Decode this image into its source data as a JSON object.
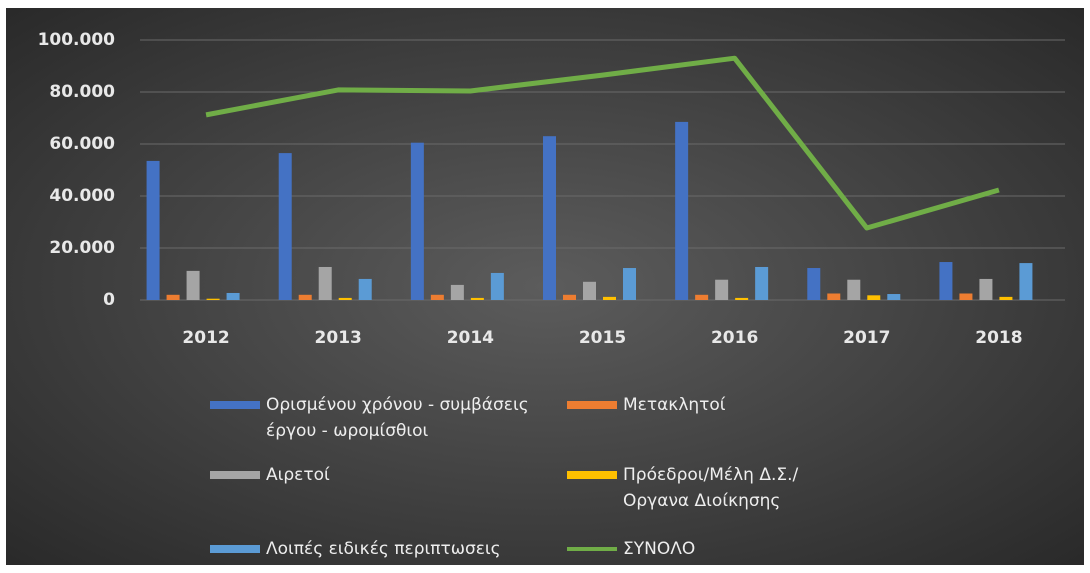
{
  "chart_data": {
    "type": "bar",
    "categories": [
      "2012",
      "2013",
      "2014",
      "2015",
      "2016",
      "2017",
      "2018"
    ],
    "series": [
      {
        "name": "Ορισμένου χρόνου - συμβάσεις έργου - ωρομίσθιοι",
        "color": "#4472c4",
        "values": [
          53500,
          56500,
          60500,
          63000,
          68500,
          12300,
          14600
        ]
      },
      {
        "name": "Μετακλητοί",
        "color": "#ed7d31",
        "values": [
          2000,
          2000,
          2000,
          2000,
          2000,
          2500,
          2500
        ]
      },
      {
        "name": "Αιρετοί",
        "color": "#a5a5a5",
        "values": [
          11200,
          12700,
          5800,
          7000,
          7800,
          7800,
          8100
        ]
      },
      {
        "name": "Πρόεδροι/Μέλη Δ.Σ./ Οργανα Διοίκησης",
        "color": "#ffc000",
        "values": [
          500,
          800,
          800,
          1200,
          800,
          1800,
          1200
        ]
      },
      {
        "name": "Λοιπές ειδικές περιπτωσεις",
        "color": "#5b9bd5",
        "values": [
          2700,
          8100,
          10400,
          12300,
          12700,
          2300,
          14200
        ]
      },
      {
        "name": "ΣΥΝΟΛΟ",
        "color": "#70ad47",
        "type": "line",
        "values": [
          71200,
          80800,
          80400,
          86500,
          93000,
          27700,
          42300
        ]
      }
    ],
    "ylim": [
      0,
      100000
    ],
    "yticks": [
      0,
      {
        "value": 20000,
        "label": "20.000"
      },
      {
        "value": 40000,
        "label": "40.000"
      },
      {
        "value": 60000,
        "label": "60.000"
      },
      {
        "value": 80000,
        "label": "80.000"
      },
      {
        "value": 100000,
        "label": "100.000"
      }
    ],
    "grid": true,
    "legend": "bottom"
  }
}
